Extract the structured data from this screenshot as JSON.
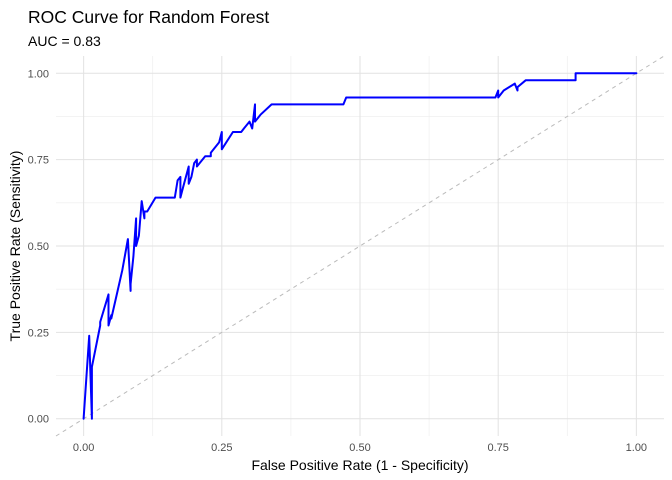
{
  "chart_data": {
    "type": "line",
    "title": "ROC Curve for Random Forest",
    "subtitle": "AUC = 0.83",
    "xlabel": "False Positive Rate (1 - Specificity)",
    "ylabel": "True Positive Rate (Sensitivity)",
    "xlim": [
      -0.05,
      1.05
    ],
    "ylim": [
      -0.05,
      1.05
    ],
    "x_ticks": [
      "0.00",
      "0.25",
      "0.50",
      "0.75",
      "1.00"
    ],
    "y_ticks": [
      "0.00",
      "0.25",
      "0.50",
      "0.75",
      "1.00"
    ],
    "grid": true,
    "legend": "none",
    "series": [
      {
        "color": "#0000ff",
        "x": [
          0.0,
          0.01,
          0.015,
          0.015,
          0.03,
          0.03,
          0.045,
          0.045,
          0.05,
          0.05,
          0.06,
          0.07,
          0.08,
          0.085,
          0.085,
          0.09,
          0.095,
          0.095,
          0.1,
          0.105,
          0.11,
          0.11,
          0.115,
          0.13,
          0.165,
          0.17,
          0.175,
          0.175,
          0.18,
          0.19,
          0.19,
          0.195,
          0.2,
          0.205,
          0.205,
          0.22,
          0.23,
          0.23,
          0.245,
          0.25,
          0.25,
          0.27,
          0.285,
          0.29,
          0.3,
          0.305,
          0.31,
          0.31,
          0.32,
          0.34,
          0.36,
          0.47,
          0.475,
          0.745,
          0.75,
          0.75,
          0.76,
          0.78,
          0.785,
          0.785,
          0.8,
          0.87,
          0.89,
          0.89,
          1.0
        ],
        "y": [
          0.0,
          0.24,
          0.0,
          0.15,
          0.27,
          0.28,
          0.36,
          0.27,
          0.3,
          0.29,
          0.36,
          0.43,
          0.52,
          0.37,
          0.39,
          0.47,
          0.58,
          0.5,
          0.53,
          0.63,
          0.58,
          0.6,
          0.6,
          0.64,
          0.64,
          0.69,
          0.7,
          0.64,
          0.67,
          0.73,
          0.68,
          0.7,
          0.74,
          0.75,
          0.73,
          0.76,
          0.76,
          0.77,
          0.8,
          0.83,
          0.78,
          0.83,
          0.83,
          0.84,
          0.86,
          0.84,
          0.91,
          0.86,
          0.88,
          0.91,
          0.91,
          0.91,
          0.93,
          0.93,
          0.95,
          0.93,
          0.95,
          0.97,
          0.95,
          0.96,
          0.98,
          0.98,
          0.98,
          1.0,
          1.0
        ]
      }
    ],
    "reference_line": {
      "type": "diagonal",
      "color": "#bbbbbb",
      "dash": "dashed"
    }
  }
}
